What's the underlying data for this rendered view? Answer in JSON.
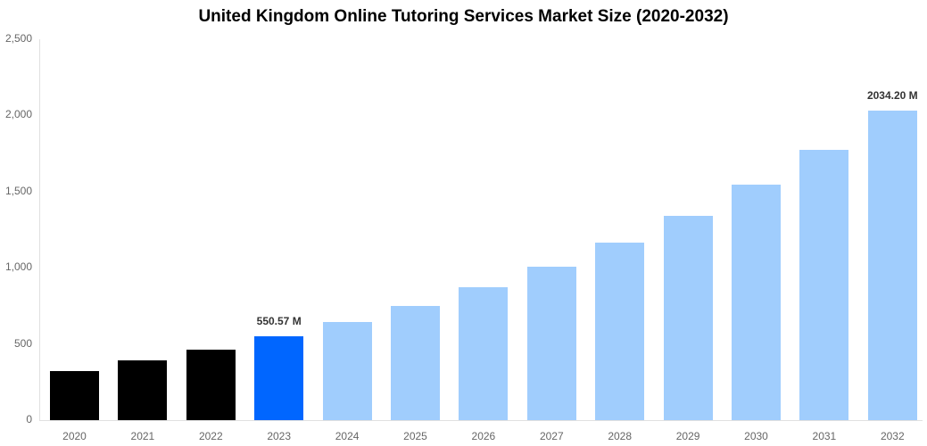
{
  "chart_data": {
    "type": "bar",
    "title": "United Kingdom Online Tutoring Services Market Size (2020-2032)",
    "xlabel": "",
    "ylabel": "",
    "ylim": [
      0,
      2500
    ],
    "yticks": [
      0,
      500,
      1000,
      1500,
      2000,
      2500
    ],
    "ytick_labels": [
      "0",
      "500",
      "1,000",
      "1,500",
      "2,000",
      "2,500"
    ],
    "grid": false,
    "legend": null,
    "categories": [
      "2020",
      "2021",
      "2022",
      "2023",
      "2024",
      "2025",
      "2026",
      "2027",
      "2028",
      "2029",
      "2030",
      "2031",
      "2032"
    ],
    "values": [
      322,
      392,
      463,
      550.57,
      644,
      749,
      872,
      1007,
      1165,
      1341,
      1546,
      1774,
      2034.2
    ],
    "bar_colors": [
      "#000000",
      "#000000",
      "#000000",
      "#0066ff",
      "#a0cdfd",
      "#a0cdfd",
      "#a0cdfd",
      "#a0cdfd",
      "#a0cdfd",
      "#a0cdfd",
      "#a0cdfd",
      "#a0cdfd",
      "#a0cdfd"
    ],
    "annotations": [
      {
        "category": "2023",
        "label": "550.57 M"
      },
      {
        "category": "2032",
        "label": "2034.20 M"
      }
    ]
  }
}
